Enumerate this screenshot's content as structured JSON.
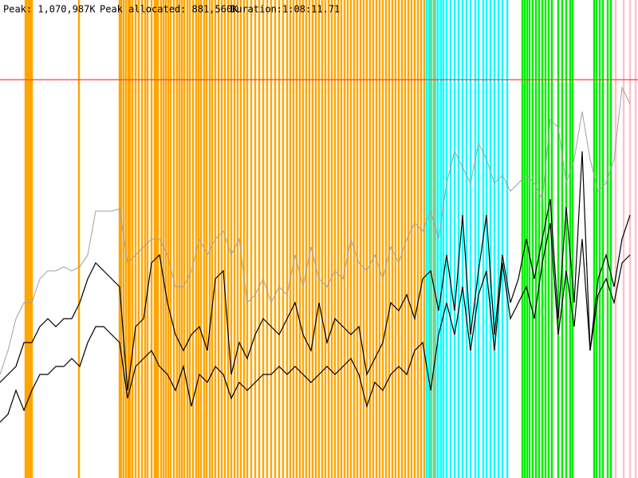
{
  "header": {
    "peak": "Peak: 1,070,987K",
    "peak_allocated": "Peak allocated: 881,560K",
    "duration": "Duration:1:08:11.71"
  },
  "chart_data": {
    "type": "line",
    "xlim": [
      0,
      80
    ],
    "ylim": [
      0,
      600
    ],
    "x": [
      0,
      1,
      2,
      3,
      4,
      5,
      6,
      7,
      8,
      9,
      10,
      11,
      12,
      13,
      14,
      15,
      16,
      17,
      18,
      19,
      20,
      21,
      22,
      23,
      24,
      25,
      26,
      27,
      28,
      29,
      30,
      31,
      32,
      33,
      34,
      35,
      36,
      37,
      38,
      39,
      40,
      41,
      42,
      43,
      44,
      45,
      46,
      47,
      48,
      49,
      50,
      51,
      52,
      53,
      54,
      55,
      56,
      57,
      58,
      59,
      60,
      61,
      62,
      63,
      64,
      65,
      66,
      67,
      68,
      69,
      70,
      71,
      72,
      73,
      74,
      75,
      76,
      77,
      78,
      79
    ],
    "series": [
      {
        "color": "#a0a0a0",
        "width": 1,
        "values": [
          130,
          160,
          200,
          220,
          220,
          250,
          260,
          260,
          265,
          260,
          265,
          280,
          335,
          335,
          335,
          338,
          270,
          280,
          290,
          300,
          300,
          280,
          240,
          240,
          260,
          300,
          280,
          300,
          310,
          280,
          300,
          220,
          230,
          250,
          220,
          240,
          230,
          280,
          240,
          290,
          250,
          240,
          260,
          250,
          300,
          270,
          260,
          280,
          250,
          290,
          270,
          300,
          320,
          310,
          335,
          300,
          370,
          410,
          390,
          370,
          420,
          400,
          370,
          380,
          360,
          370,
          380,
          370,
          350,
          450,
          440,
          370,
          400,
          460,
          400,
          360,
          370,
          400,
          490,
          470
        ]
      },
      {
        "color": "#000000",
        "width": 1.2,
        "values": [
          120,
          130,
          140,
          170,
          170,
          190,
          200,
          190,
          200,
          200,
          220,
          250,
          270,
          260,
          250,
          240,
          110,
          190,
          200,
          270,
          280,
          220,
          180,
          160,
          180,
          190,
          160,
          250,
          260,
          130,
          170,
          150,
          180,
          200,
          190,
          180,
          200,
          220,
          180,
          160,
          220,
          170,
          200,
          190,
          180,
          190,
          130,
          150,
          170,
          220,
          210,
          230,
          200,
          250,
          260,
          210,
          280,
          210,
          330,
          180,
          260,
          330,
          180,
          280,
          220,
          250,
          300,
          250,
          300,
          350,
          200,
          340,
          220,
          410,
          160,
          250,
          280,
          240,
          300,
          330
        ]
      },
      {
        "color": "#000000",
        "width": 1.2,
        "values": [
          70,
          80,
          110,
          85,
          110,
          130,
          130,
          140,
          140,
          150,
          140,
          170,
          190,
          190,
          180,
          170,
          100,
          140,
          150,
          160,
          140,
          130,
          110,
          140,
          90,
          130,
          120,
          140,
          130,
          100,
          120,
          110,
          120,
          130,
          130,
          140,
          130,
          140,
          130,
          120,
          130,
          140,
          130,
          140,
          150,
          130,
          90,
          120,
          110,
          130,
          140,
          130,
          160,
          170,
          110,
          180,
          220,
          180,
          240,
          160,
          230,
          260,
          160,
          270,
          200,
          220,
          240,
          200,
          270,
          320,
          180,
          260,
          190,
          300,
          160,
          230,
          250,
          220,
          270,
          280
        ]
      }
    ],
    "reference_lines": [
      {
        "y": 500,
        "color": "#ff4040"
      }
    ],
    "events": [
      {
        "color": "#ffa500",
        "x": [
          3.2,
          3.4,
          3.6,
          3.8,
          4.0,
          9.9,
          15.0,
          15.2,
          15.5,
          15.8,
          16.1,
          16.3,
          16.6,
          17.0,
          17.4,
          17.8,
          18.2,
          18.5,
          19.0,
          19.4,
          19.6,
          19.8,
          20.2,
          20.5,
          20.8,
          21.1,
          21.4,
          21.8,
          22.2,
          22.5,
          22.8,
          23.1,
          23.5,
          23.8,
          24.2,
          24.6,
          24.9,
          25.2,
          25.6,
          25.9,
          26.3,
          26.6,
          27.0,
          27.4,
          27.8,
          28.2,
          28.6,
          29.0,
          29.4,
          29.8,
          30.2,
          30.6,
          31.0,
          31.5,
          32.0,
          32.5,
          33.0,
          33.5,
          34.0,
          34.5,
          35.0,
          35.5,
          36.0,
          36.4,
          36.8,
          37.2,
          37.6,
          38.0,
          38.4,
          38.8,
          39.2,
          39.6,
          40.0,
          40.4,
          40.8,
          41.2,
          41.6,
          42.0,
          42.4,
          42.8,
          43.2,
          43.6,
          44.0,
          44.4,
          44.8,
          45.2,
          45.6,
          46.0,
          46.4,
          46.8,
          47.2,
          47.6,
          48.0,
          48.4,
          48.8,
          49.2,
          49.6,
          50.0,
          50.4,
          50.8,
          51.2,
          51.6,
          52.0,
          52.4,
          52.8,
          53.2,
          54.0,
          54.4
        ]
      },
      {
        "color": "#00ffff",
        "x": [
          53.5,
          53.8,
          54.1,
          54.6,
          54.9,
          55.3,
          55.6,
          56.0,
          56.5,
          57.0,
          57.5,
          58.0,
          58.5,
          59.0,
          59.6,
          60.0,
          60.6,
          61.0,
          61.5,
          62.0,
          62.5,
          63.0,
          63.6
        ]
      },
      {
        "color": "#00ee00",
        "x": [
          65.5,
          65.8,
          66.1,
          66.4,
          66.8,
          67.2,
          67.6,
          68.0,
          68.4,
          68.8,
          69.2,
          70.0,
          70.5,
          71.0,
          71.5,
          71.8,
          74.5,
          74.8,
          75.2,
          75.6,
          76.2,
          76.6
        ]
      },
      {
        "color": "#ffc0c8",
        "x": [
          77.2,
          78.2,
          79.0,
          79.7
        ]
      }
    ]
  }
}
